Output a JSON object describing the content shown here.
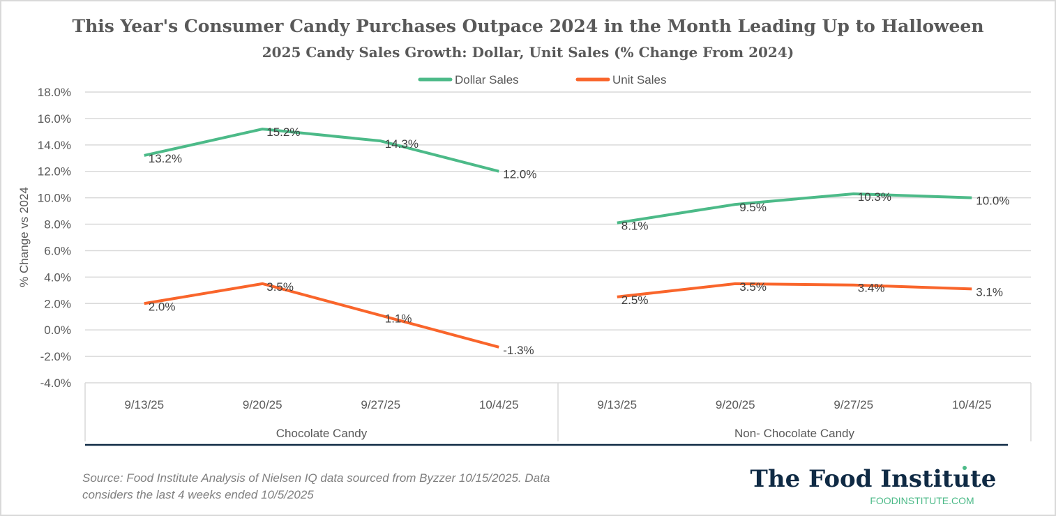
{
  "chart_data": {
    "type": "line",
    "title": "This Year's Consumer Candy Purchases Outpace 2024 in the Month Leading Up to Halloween",
    "subtitle": "2025 Candy Sales Growth: Dollar, Unit Sales (% Change From 2024)",
    "ylabel": "% Change vs 2024",
    "xlabel": "",
    "ylim": [
      -4,
      18
    ],
    "ytick_step": 2,
    "yticks": [
      "18.0%",
      "16.0%",
      "14.0%",
      "12.0%",
      "10.0%",
      "8.0%",
      "6.0%",
      "4.0%",
      "2.0%",
      "0.0%",
      "-2.0%",
      "-4.0%"
    ],
    "grid": true,
    "legend_position": "top",
    "groups": [
      {
        "name": "Chocolate Candy",
        "categories": [
          "9/13/25",
          "9/20/25",
          "9/27/25",
          "10/4/25"
        ]
      },
      {
        "name": "Non- Chocolate Candy",
        "categories": [
          "9/13/25",
          "9/20/25",
          "9/27/25",
          "10/4/25"
        ]
      }
    ],
    "series": [
      {
        "name": "Dollar Sales",
        "color": "#4cba88",
        "values": [
          [
            13.2,
            15.2,
            14.3,
            12.0
          ],
          [
            8.1,
            9.5,
            10.3,
            10.0
          ]
        ],
        "labels": [
          [
            "13.2%",
            "15.2%",
            "14.3%",
            "12.0%"
          ],
          [
            "8.1%",
            "9.5%",
            "10.3%",
            "10.0%"
          ]
        ]
      },
      {
        "name": "Unit Sales",
        "color": "#f9652b",
        "values": [
          [
            2.0,
            3.5,
            1.1,
            -1.3
          ],
          [
            2.5,
            3.5,
            3.4,
            3.1
          ]
        ],
        "labels": [
          [
            "2.0%",
            "3.5%",
            "1.1%",
            "-1.3%"
          ],
          [
            "2.5%",
            "3.5%",
            "3.4%",
            "3.1%"
          ]
        ]
      }
    ]
  },
  "footer": {
    "source_line1": "Source: Food Institute Analysis of Nielsen IQ data sourced from Byzzer 10/15/2025. Data",
    "source_line2": "considers the last 4 weeks ended 10/5/2025",
    "logo_text": "The Food Institute",
    "logo_url_text": "FOODINSTITUTE.COM",
    "logo_color": "#0f2a44",
    "url_color": "#4cba88"
  }
}
